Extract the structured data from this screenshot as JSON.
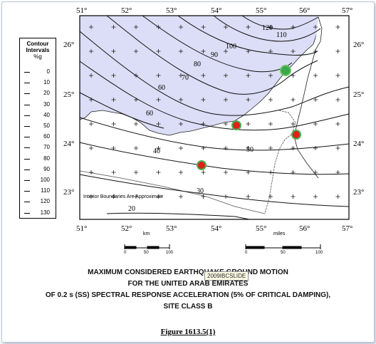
{
  "legend": {
    "title_line1": "Contour",
    "title_line2": "Intervals",
    "unit": "%g",
    "values": [
      "0",
      "10",
      "20",
      "30",
      "40",
      "50",
      "60",
      "70",
      "80",
      "90",
      "100",
      "110",
      "120",
      "130"
    ]
  },
  "axes": {
    "longitudes": [
      "51°",
      "52°",
      "53°",
      "54°",
      "55°",
      "56°",
      "57°"
    ],
    "latitudes": [
      "26°",
      "25°",
      "24°",
      "23°"
    ]
  },
  "contour_labels": [
    "120",
    "110",
    "100",
    "90",
    "80",
    "70",
    "60",
    "60",
    "50",
    "40",
    "30",
    "20"
  ],
  "map_note": "Interior Boundaries Are Approximate",
  "scale_km": {
    "unit": "km",
    "ticks": [
      "0",
      "50",
      "100"
    ]
  },
  "scale_miles": {
    "unit": "miles",
    "ticks": [
      "0",
      "50",
      "100"
    ]
  },
  "markers": [
    {
      "name": "green",
      "color": "#3aa848"
    },
    {
      "name": "red",
      "color": "#e0201a"
    }
  ],
  "colors": {
    "sea": "#dcddf6",
    "land": "#ffffff",
    "contour": "#111111"
  },
  "caption": {
    "line1": "MAXIMUM CONSIDERED EARTHQUAKE GROUND MOTION",
    "line2": "FOR THE UNITED ARAB EMIRATES",
    "line3": "OF 0.2 s (SS) SPECTRAL RESPONSE ACCELERATION (5% OF CRITICAL DAMPING),",
    "line4": "SITE CLASS B"
  },
  "figure_label": "Figure 1613.5(1)",
  "tooltip": "2009IBCSLIDE"
}
